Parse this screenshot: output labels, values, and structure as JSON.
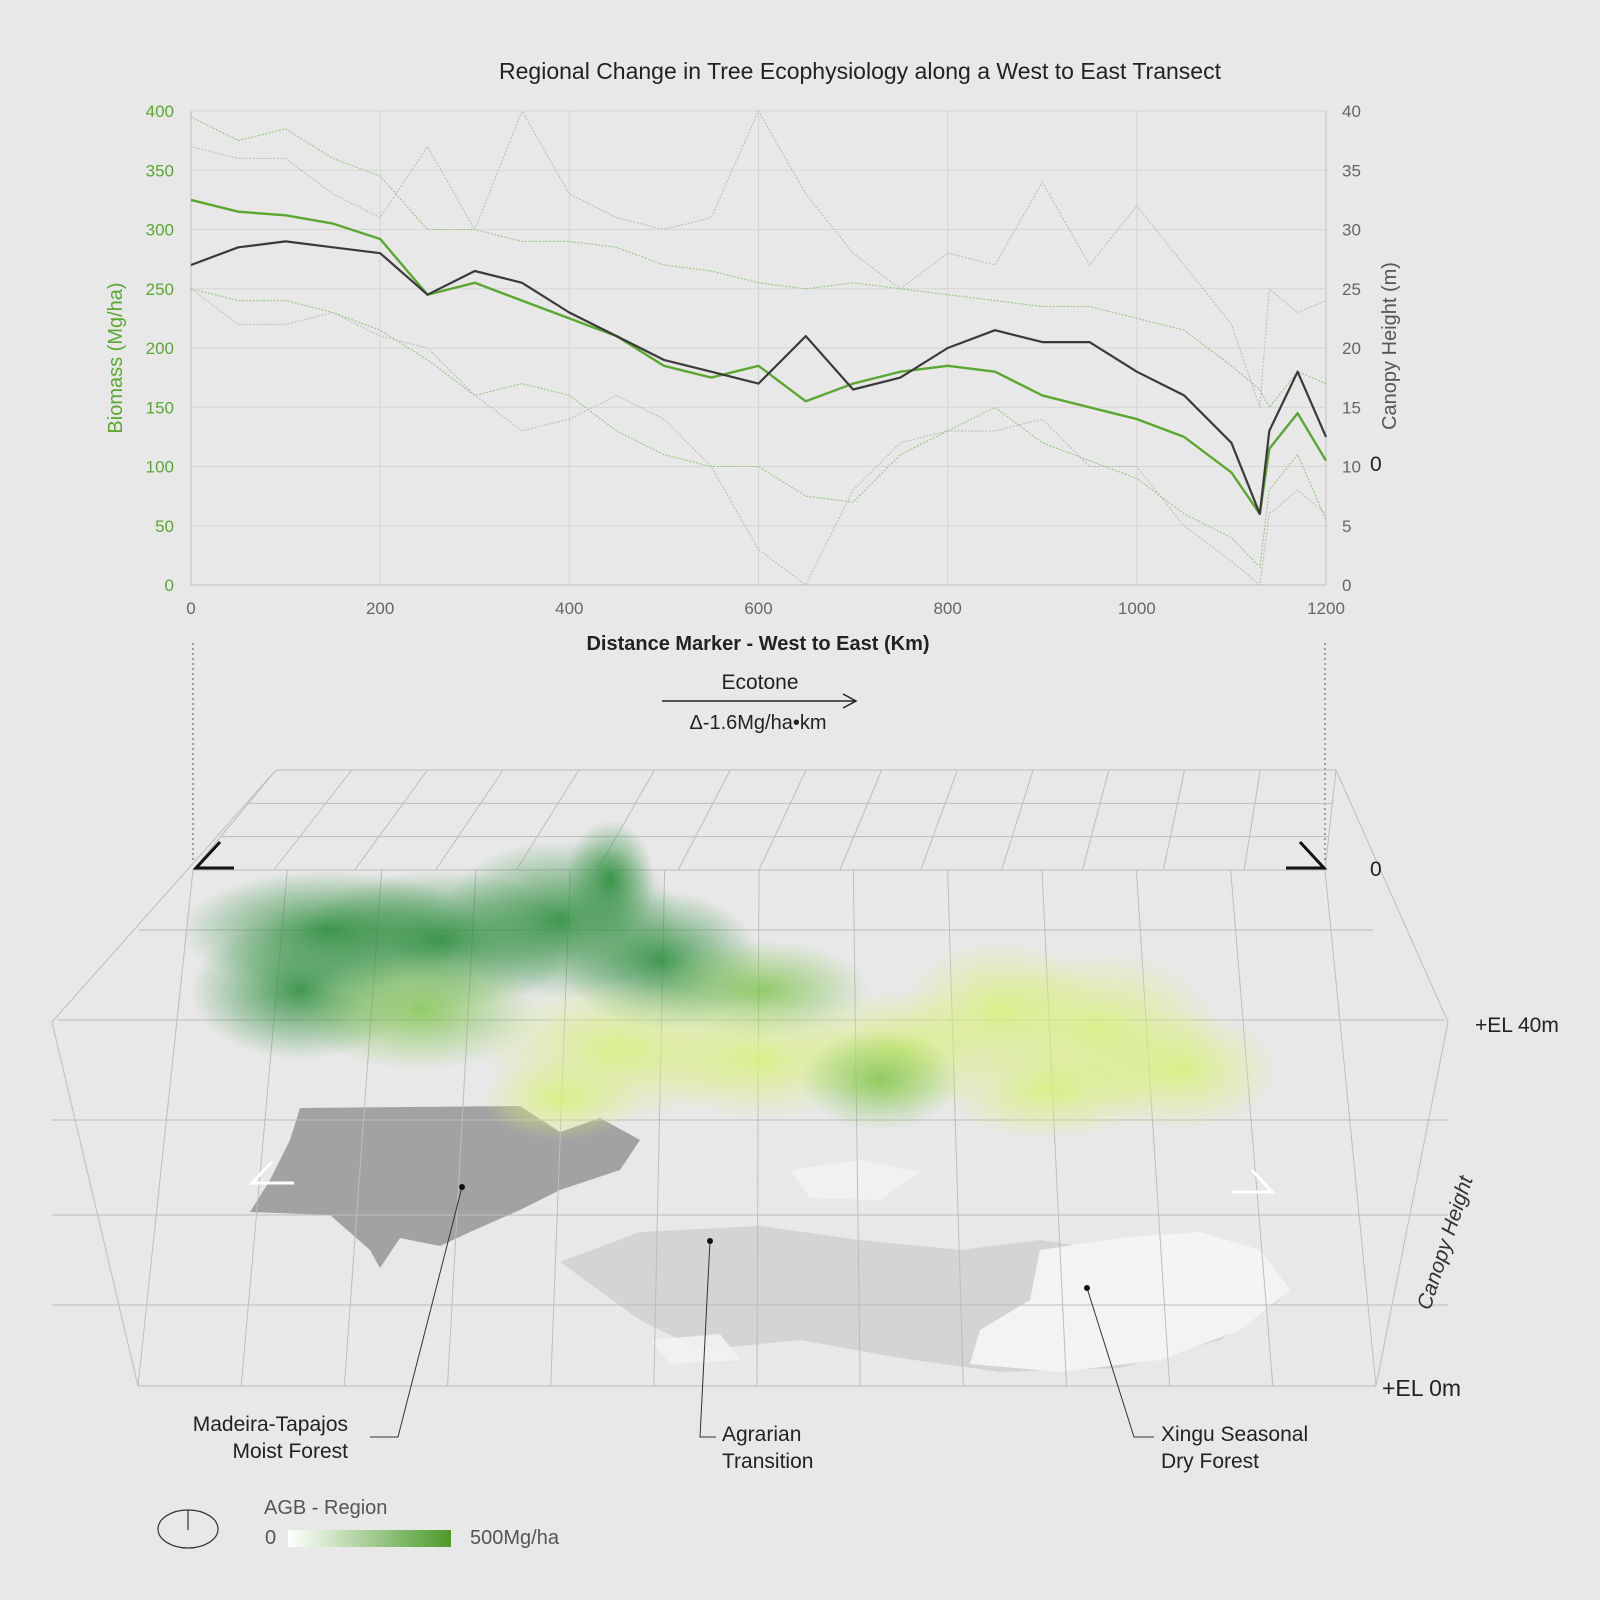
{
  "chart_data": {
    "type": "line",
    "title": "Regional Change in Tree Ecophysiology along a West to East Transect",
    "xlabel": "Distance Marker - West to East (Km)",
    "ylabel_left": "Biomass (Mg/ha)",
    "ylabel_right": "Canopy Height (m)",
    "right_zero_marker": "0",
    "xlim": [
      0,
      1200
    ],
    "ylim_left": [
      0,
      400
    ],
    "ylim_right": [
      0,
      40
    ],
    "x_ticks": [
      "0",
      "200",
      "400",
      "600",
      "800",
      "1000",
      "1200"
    ],
    "y_ticks_left": [
      "0",
      "50",
      "100",
      "150",
      "200",
      "250",
      "300",
      "350",
      "400"
    ],
    "y_ticks_right": [
      "0",
      "5",
      "10",
      "15",
      "20",
      "25",
      "30",
      "35",
      "40"
    ],
    "grid": true,
    "colors": {
      "biomass": "#5aa832",
      "canopy": "#3a3a3a",
      "band": "#8fc27a",
      "band_gray": "#b8b8b8"
    },
    "x": [
      0,
      50,
      100,
      150,
      200,
      250,
      300,
      350,
      400,
      450,
      500,
      550,
      600,
      650,
      700,
      750,
      800,
      850,
      900,
      950,
      1000,
      1050,
      1100,
      1130,
      1140,
      1170,
      1200
    ],
    "series": [
      {
        "axis": "left",
        "role": "biomass-mean",
        "values": [
          325,
          315,
          312,
          305,
          292,
          245,
          255,
          240,
          225,
          210,
          185,
          175,
          185,
          155,
          170,
          180,
          185,
          180,
          160,
          150,
          140,
          125,
          95,
          60,
          115,
          145,
          105
        ]
      },
      {
        "axis": "left",
        "role": "biomass-upper",
        "values": [
          395,
          375,
          385,
          360,
          345,
          300,
          300,
          290,
          290,
          285,
          270,
          265,
          255,
          250,
          255,
          250,
          245,
          240,
          235,
          235,
          225,
          215,
          185,
          165,
          150,
          180,
          170
        ]
      },
      {
        "axis": "left",
        "role": "biomass-lower",
        "values": [
          250,
          240,
          240,
          230,
          215,
          190,
          160,
          170,
          160,
          130,
          110,
          100,
          100,
          75,
          70,
          110,
          130,
          150,
          120,
          105,
          90,
          60,
          40,
          15,
          80,
          110,
          55
        ]
      },
      {
        "axis": "right",
        "role": "canopy-height",
        "values": [
          27,
          28.5,
          29,
          28.5,
          28,
          24.5,
          26.5,
          25.5,
          23,
          21,
          19,
          18,
          17,
          21,
          16.5,
          17.5,
          20,
          21.5,
          20.5,
          20.5,
          18,
          16,
          12,
          6,
          13,
          18,
          12.5
        ]
      },
      {
        "axis": "right",
        "role": "canopy-upper",
        "values": [
          37,
          36,
          36,
          33,
          31,
          37,
          30,
          40,
          33,
          31,
          30,
          31,
          40,
          33,
          28,
          25,
          28,
          27,
          34,
          27,
          32,
          27,
          22,
          15,
          25,
          23,
          24
        ]
      },
      {
        "axis": "right",
        "role": "canopy-lower",
        "values": [
          25,
          22,
          22,
          23,
          21,
          20,
          16,
          13,
          14,
          16,
          14,
          10,
          3,
          0,
          8,
          12,
          13,
          13,
          14,
          10,
          10,
          5,
          2,
          0,
          6,
          8,
          6
        ]
      }
    ]
  },
  "ecotone": {
    "label": "Ecotone",
    "rate": "Δ-1.6Mg/ha•km"
  },
  "box": {
    "zero_label": "0",
    "el_40": "+EL 40m",
    "el_0": "+EL 0m",
    "side_axis_label": "Canopy Height"
  },
  "regions": [
    {
      "line1": "Madeira-Tapajos",
      "line2": "Moist Forest"
    },
    {
      "line1": "Agrarian",
      "line2": "Transition"
    },
    {
      "line1": "Xingu Seasonal",
      "line2": "Dry Forest"
    }
  ],
  "legend": {
    "title": "AGB - Region",
    "min": "0",
    "max": "500Mg/ha",
    "ramp_start": "#ffffff",
    "ramp_end": "#4c9a2a"
  }
}
